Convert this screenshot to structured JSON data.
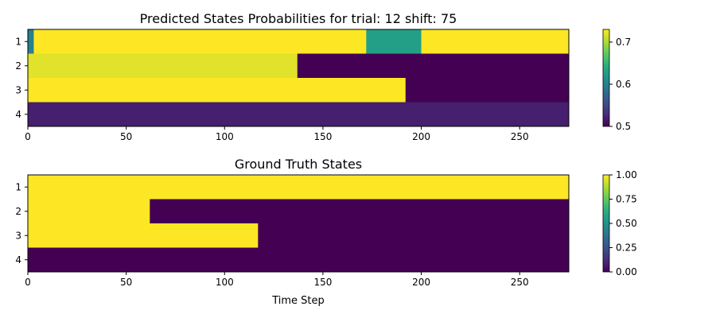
{
  "chart_data": [
    {
      "type": "heatmap",
      "title": "Predicted States Probabilities for trial: 12 shift: 75",
      "xlabel": "",
      "ylabel": "",
      "x_range": [
        0,
        275
      ],
      "x_ticks": [
        0,
        50,
        100,
        150,
        200,
        250
      ],
      "rows": [
        "1",
        "2",
        "3",
        "4"
      ],
      "colormap": "viridis",
      "colorbar": {
        "range": [
          0.5,
          0.73
        ],
        "ticks": [
          0.5,
          0.6,
          0.7
        ]
      },
      "segments": [
        {
          "row": "1",
          "start": 0,
          "end": 3,
          "value": 0.6
        },
        {
          "row": "1",
          "start": 3,
          "end": 172,
          "value": 0.73
        },
        {
          "row": "1",
          "start": 172,
          "end": 200,
          "value": 0.63
        },
        {
          "row": "1",
          "start": 200,
          "end": 275,
          "value": 0.73
        },
        {
          "row": "2",
          "start": 0,
          "end": 137,
          "value": 0.72
        },
        {
          "row": "2",
          "start": 137,
          "end": 275,
          "value": 0.5
        },
        {
          "row": "3",
          "start": 0,
          "end": 192,
          "value": 0.73
        },
        {
          "row": "3",
          "start": 192,
          "end": 275,
          "value": 0.5
        },
        {
          "row": "4",
          "start": 0,
          "end": 275,
          "value": 0.52
        }
      ]
    },
    {
      "type": "heatmap",
      "title": "Ground Truth States",
      "xlabel": "Time Step",
      "ylabel": "",
      "x_range": [
        0,
        275
      ],
      "x_ticks": [
        0,
        50,
        100,
        150,
        200,
        250
      ],
      "rows": [
        "1",
        "2",
        "3",
        "4"
      ],
      "colormap": "viridis",
      "colorbar": {
        "range": [
          0,
          1
        ],
        "ticks": [
          "0.00",
          "0.25",
          "0.50",
          "0.75",
          "1.00"
        ]
      },
      "segments": [
        {
          "row": "1",
          "start": 0,
          "end": 275,
          "value": 1
        },
        {
          "row": "2",
          "start": 0,
          "end": 62,
          "value": 1
        },
        {
          "row": "2",
          "start": 62,
          "end": 275,
          "value": 0
        },
        {
          "row": "3",
          "start": 0,
          "end": 117,
          "value": 1
        },
        {
          "row": "3",
          "start": 117,
          "end": 275,
          "value": 0
        },
        {
          "row": "4",
          "start": 0,
          "end": 275,
          "value": 0
        }
      ]
    }
  ],
  "colors": {
    "viridis_low": "#440154",
    "viridis_high": "#fde725"
  }
}
